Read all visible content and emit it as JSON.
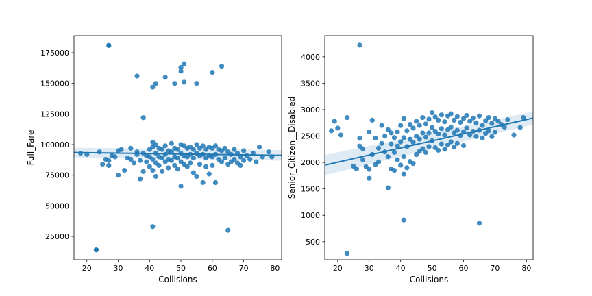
{
  "colors": {
    "point": "#1f77b4",
    "line": "#1f77b4",
    "band": "#1f77b4"
  },
  "chart_data": [
    {
      "type": "scatter",
      "title": "",
      "xlabel": "Collisions",
      "ylabel": "Full_Fare",
      "xlim": [
        15.9,
        82.1
      ],
      "ylim": [
        6000,
        189000
      ],
      "xticks": [
        20,
        30,
        40,
        50,
        60,
        70,
        80
      ],
      "yticks": [
        25000,
        50000,
        75000,
        100000,
        125000,
        150000,
        175000
      ],
      "xtick_labels": [
        "20",
        "30",
        "40",
        "50",
        "60",
        "70",
        "80"
      ],
      "ytick_labels": [
        "25000",
        "50000",
        "75000",
        "100000",
        "125000",
        "150000",
        "175000"
      ],
      "regression": {
        "x": [
          15.9,
          82.1
        ],
        "y": [
          93500,
          91200
        ],
        "ci": [
          4000,
          4300
        ]
      },
      "x": [
        18,
        20,
        23,
        24,
        25,
        26,
        27,
        27,
        27,
        28,
        29,
        30,
        30,
        31,
        32,
        33,
        34,
        34,
        35,
        36,
        36,
        37,
        37,
        38,
        38,
        39,
        39,
        40,
        40,
        40,
        41,
        41,
        41,
        41,
        42,
        42,
        42,
        42,
        43,
        43,
        43,
        44,
        44,
        44,
        45,
        45,
        45,
        46,
        46,
        46,
        47,
        47,
        47,
        48,
        48,
        48,
        49,
        49,
        49,
        50,
        50,
        50,
        51,
        51,
        51,
        52,
        52,
        52,
        53,
        53,
        53,
        54,
        54,
        54,
        55,
        55,
        55,
        56,
        56,
        56,
        57,
        57,
        57,
        58,
        58,
        58,
        59,
        59,
        59,
        60,
        60,
        60,
        61,
        61,
        61,
        62,
        62,
        63,
        63,
        64,
        64,
        65,
        65,
        66,
        66,
        67,
        67,
        68,
        68,
        69,
        69,
        70,
        70,
        71,
        72,
        73,
        74,
        75,
        76,
        78,
        79,
        23,
        27,
        36,
        38,
        41,
        42,
        45,
        48,
        50,
        50,
        51,
        51,
        55,
        60,
        63,
        41,
        50,
        65
      ],
      "y": [
        93000,
        92000,
        14000,
        94000,
        84000,
        88000,
        181000,
        87000,
        83000,
        91000,
        90000,
        95000,
        75000,
        96000,
        79000,
        89000,
        97000,
        88000,
        85000,
        94000,
        92000,
        72000,
        87000,
        93000,
        78000,
        91000,
        86000,
        96000,
        82000,
        90000,
        102000,
        98000,
        88000,
        79000,
        100000,
        93000,
        85000,
        74000,
        97000,
        90000,
        83000,
        96000,
        89000,
        78000,
        99000,
        92000,
        86000,
        95000,
        88000,
        81000,
        101000,
        94000,
        87000,
        97000,
        90000,
        83000,
        96000,
        89000,
        80000,
        100000,
        93000,
        86000,
        99000,
        91000,
        84000,
        97000,
        90000,
        82000,
        98000,
        92000,
        85000,
        96000,
        89000,
        77000,
        100000,
        93000,
        74000,
        97000,
        91000,
        84000,
        99000,
        92000,
        69000,
        96000,
        89000,
        82000,
        98000,
        91000,
        76000,
        97000,
        90000,
        83000,
        99000,
        92000,
        69000,
        96000,
        88000,
        95000,
        86000,
        97000,
        89000,
        94000,
        84000,
        92000,
        86000,
        96000,
        88000,
        93000,
        85000,
        90000,
        83000,
        95000,
        87000,
        91000,
        88000,
        93000,
        86000,
        98000,
        90000,
        94000,
        90000,
        14000,
        181000,
        156000,
        122000,
        147000,
        150000,
        155000,
        150000,
        163000,
        160000,
        166000,
        151000,
        150000,
        159000,
        164000,
        33000,
        66000,
        30000
      ]
    },
    {
      "type": "scatter",
      "title": "",
      "xlabel": "Collisions",
      "ylabel": "Senior_Citizen__Disabled",
      "xlim": [
        15.9,
        82.1
      ],
      "ylim": [
        160,
        4400
      ],
      "xticks": [
        20,
        30,
        40,
        50,
        60,
        70,
        80
      ],
      "yticks": [
        500,
        1000,
        1500,
        2000,
        2500,
        3000,
        3500,
        4000
      ],
      "xtick_labels": [
        "20",
        "30",
        "40",
        "50",
        "60",
        "70",
        "80"
      ],
      "ytick_labels": [
        "500",
        "1000",
        "1500",
        "2000",
        "2500",
        "3000",
        "3500",
        "4000"
      ],
      "regression": {
        "x": [
          15.9,
          82.1
        ],
        "y": [
          1950,
          2840
        ],
        "ci": [
          190,
          120
        ]
      },
      "x": [
        18,
        19,
        20,
        21,
        23,
        25,
        26,
        27,
        27,
        28,
        28,
        29,
        30,
        30,
        30,
        31,
        31,
        32,
        32,
        33,
        33,
        34,
        34,
        35,
        35,
        36,
        36,
        36,
        37,
        37,
        37,
        38,
        38,
        38,
        39,
        39,
        39,
        40,
        40,
        40,
        41,
        41,
        41,
        41,
        42,
        42,
        42,
        43,
        43,
        43,
        44,
        44,
        44,
        45,
        45,
        45,
        46,
        46,
        46,
        47,
        47,
        47,
        48,
        48,
        48,
        49,
        49,
        49,
        50,
        50,
        50,
        51,
        51,
        51,
        52,
        52,
        52,
        53,
        53,
        53,
        54,
        54,
        54,
        55,
        55,
        55,
        56,
        56,
        56,
        57,
        57,
        57,
        58,
        58,
        58,
        59,
        59,
        60,
        60,
        60,
        61,
        61,
        62,
        62,
        63,
        63,
        64,
        64,
        65,
        65,
        66,
        66,
        67,
        67,
        68,
        68,
        69,
        69,
        70,
        70,
        71,
        72,
        73,
        74,
        76,
        78,
        79,
        23,
        27,
        41,
        65
      ],
      "y": [
        2600,
        2780,
        2650,
        2520,
        2850,
        1930,
        1880,
        2460,
        2310,
        2260,
        2050,
        1920,
        2580,
        1870,
        1700,
        2800,
        2150,
        2460,
        1960,
        2270,
        2010,
        2700,
        2360,
        2500,
        2200,
        2620,
        2110,
        1520,
        2560,
        2350,
        1880,
        2470,
        2190,
        1850,
        2580,
        2310,
        2050,
        2700,
        2390,
        1950,
        2830,
        2470,
        2110,
        1780,
        2600,
        2300,
        1900,
        2720,
        2440,
        2020,
        2650,
        2380,
        1980,
        2780,
        2500,
        2150,
        2700,
        2440,
        2210,
        2850,
        2560,
        2260,
        2730,
        2480,
        2190,
        2820,
        2560,
        2300,
        2940,
        2660,
        2410,
        2860,
        2590,
        2280,
        2800,
        2540,
        2230,
        2900,
        2640,
        2350,
        2770,
        2520,
        2250,
        2880,
        2620,
        2330,
        2920,
        2670,
        2390,
        2800,
        2560,
        2290,
        2870,
        2610,
        2360,
        2760,
        2510,
        2830,
        2580,
        2320,
        2890,
        2650,
        2780,
        2520,
        2840,
        2590,
        2750,
        2490,
        2880,
        2610,
        2700,
        2460,
        2790,
        2550,
        2850,
        2600,
        2740,
        2490,
        2830,
        2570,
        2780,
        2720,
        2670,
        2810,
        2520,
        2660,
        2850,
        280,
        4220,
        910,
        850
      ]
    }
  ]
}
